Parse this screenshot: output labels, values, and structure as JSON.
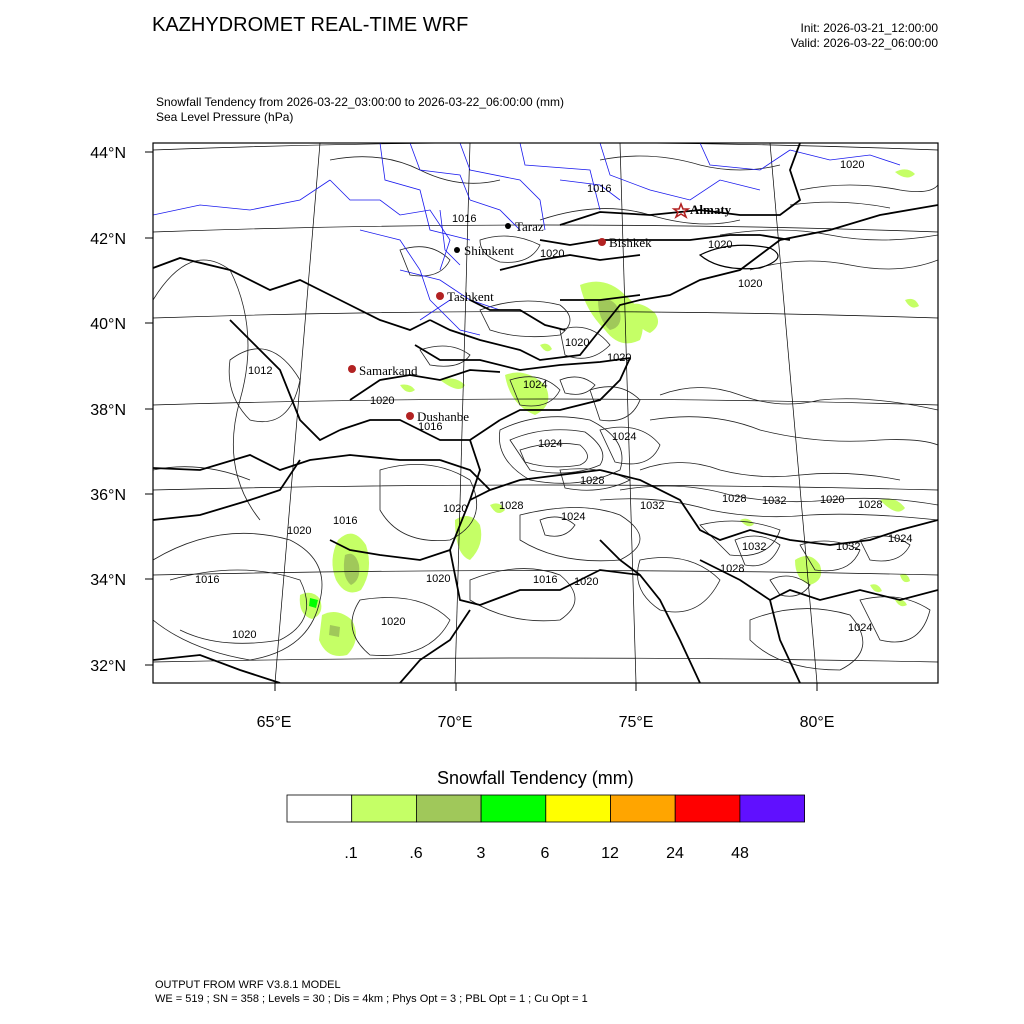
{
  "header": {
    "title": "KAZHYDROMET REAL-TIME WRF",
    "init": "Init: 2026-03-21_12:00:00",
    "valid": "Valid: 2026-03-22_06:00:00",
    "subtitle_line1": "Snowfall Tendency from 2026-03-22_03:00:00 to 2026-03-22_06:00:00   (mm)",
    "subtitle_line2": "Sea Level Pressure   (hPa)"
  },
  "map": {
    "lat_labels": [
      "44°N",
      "42°N",
      "40°N",
      "38°N",
      "36°N",
      "34°N",
      "32°N"
    ],
    "lon_labels": [
      "65°E",
      "70°E",
      "75°E",
      "80°E"
    ],
    "cities": [
      {
        "name": "Almaty",
        "marker": "star",
        "color": "#b22222",
        "bold": true
      },
      {
        "name": "Bishkek",
        "marker": "dot",
        "color": "#b22222"
      },
      {
        "name": "Taraz",
        "marker": "dot",
        "color": "#000000"
      },
      {
        "name": "Shimkent",
        "marker": "dot",
        "color": "#000000"
      },
      {
        "name": "Tashkent",
        "marker": "dot",
        "color": "#b22222"
      },
      {
        "name": "Samarkand",
        "marker": "dot",
        "color": "#b22222"
      },
      {
        "name": "Dushanbe",
        "marker": "dot",
        "color": "#b22222"
      }
    ],
    "isobar_labels": [
      "1020",
      "1016",
      "1016",
      "1020",
      "1020",
      "1020",
      "1020",
      "1020",
      "1012",
      "1020",
      "1016",
      "1024",
      "1024",
      "1024",
      "1028",
      "1032",
      "1028",
      "1032",
      "1020",
      "1028",
      "1024",
      "1020",
      "1016",
      "1024",
      "1028",
      "1032",
      "1032",
      "1020",
      "1020",
      "1016",
      "1020",
      "1016",
      "1020",
      "1020",
      "1024",
      "1032",
      "1028"
    ]
  },
  "legend": {
    "title": "Snowfall Tendency  (mm)",
    "colors": [
      "#ffffff",
      "#c5ff66",
      "#a0c85a",
      "#00ff00",
      "#ffff00",
      "#ffa500",
      "#ff0000",
      "#6010ff"
    ],
    "thresholds": [
      ".1",
      ".6",
      "3",
      "6",
      "12",
      "24",
      "48"
    ]
  },
  "footer": {
    "line1": "OUTPUT FROM WRF V3.8.1 MODEL",
    "line2": "WE = 519 ; SN = 358 ; Levels = 30 ; Dis = 4km ; Phys Opt = 3 ; PBL Opt = 1 ; Cu Opt = 1"
  }
}
